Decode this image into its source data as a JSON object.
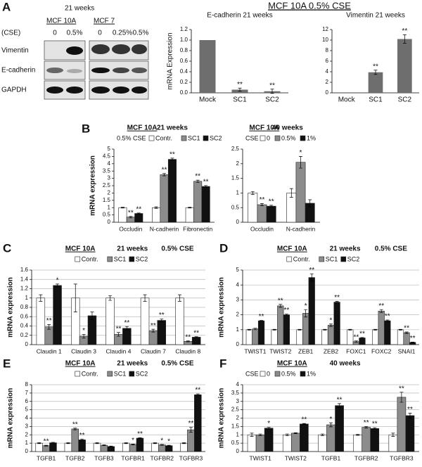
{
  "blot": {
    "panel": "A",
    "weeks": "21 weeks",
    "treatment": "(CSE)",
    "lines": [
      {
        "name": "MCF 10A",
        "lanes": [
          "0",
          "0.5%"
        ]
      },
      {
        "name": "MCF 7",
        "lanes": [
          "0",
          "0.25%",
          "0.5%"
        ]
      }
    ],
    "rows": [
      "Vimentin",
      "E-cadherin",
      "GAPDH"
    ]
  },
  "header": "MCF 10A    0.5% CSE",
  "chart_data": [
    {
      "type": "bar",
      "title": "E-cadherin  21 weeks",
      "ylabel": "mRNA Expression",
      "categories": [
        "Mock",
        "SC1",
        "SC2"
      ],
      "values": [
        1.0,
        0.06,
        0.03
      ],
      "errors": [
        null,
        0.03,
        0.04
      ],
      "labels": [
        null,
        "**",
        "**"
      ],
      "color": "#6e6e6e",
      "ylim": [
        0,
        1.2
      ],
      "yticks": [
        {
          "value": 0,
          "label": "0.0"
        },
        0.2,
        0.4,
        0.6,
        0.8,
        {
          "value": 1,
          "label": "1.0"
        },
        1.2
      ],
      "grid": false
    },
    {
      "type": "bar",
      "title": "Vimentin  21 weeks",
      "categories": [
        "Mock",
        "SC1",
        "SC2"
      ],
      "values": [
        0,
        3.9,
        10.2
      ],
      "errors": [
        null,
        0.4,
        0.8
      ],
      "labels": [
        null,
        "**",
        "**"
      ],
      "color": "#6e6e6e",
      "ylim": [
        0,
        12
      ],
      "yticks": [
        0,
        2,
        4,
        6,
        8,
        10,
        12
      ],
      "grid": false
    },
    {
      "type": "bar",
      "panel": "B",
      "title": "MCF 10A",
      "subtitle": "21 weeks",
      "legend_title": "0.5% CSE",
      "ylabel": "mRNA expression",
      "categories": [
        "Occludin",
        "N-cadherin",
        "Fibronectin"
      ],
      "series": [
        {
          "name": "Contr.",
          "color": "#ffffff",
          "values": [
            1,
            1,
            1
          ],
          "errors": [
            0.03,
            0.05,
            0.03
          ],
          "labels": [
            null,
            null,
            null
          ]
        },
        {
          "name": "SC1",
          "color": "#8c8c8c",
          "values": [
            0.35,
            3.25,
            2.8
          ],
          "errors": [
            0.05,
            0.08,
            0.08
          ],
          "labels": [
            "**",
            "**",
            "**"
          ]
        },
        {
          "name": "SC2",
          "color": "#111111",
          "values": [
            0.6,
            4.3,
            2.45
          ],
          "errors": [
            0.03,
            0.08,
            0.06
          ],
          "labels": [
            "**",
            "**",
            "**"
          ]
        }
      ],
      "ylim": [
        0,
        5
      ],
      "yticks": [
        0,
        0.5,
        1,
        1.5,
        2,
        2.5,
        3,
        3.5,
        4,
        4.5,
        5
      ],
      "grid": false
    },
    {
      "type": "bar",
      "title": "MCF 10A",
      "subtitle": "40 weeks",
      "legend_title": "CSE",
      "categories": [
        "Occludin",
        "N-cadherin"
      ],
      "series": [
        {
          "name": "0",
          "color": "#ffffff",
          "values": [
            1,
            1
          ],
          "errors": [
            0.05,
            0.15
          ],
          "labels": [
            null,
            null
          ]
        },
        {
          "name": "0.5%",
          "color": "#8c8c8c",
          "values": [
            0.6,
            2.05
          ],
          "errors": [
            0.04,
            0.2
          ],
          "labels": [
            "**",
            "*"
          ]
        },
        {
          "name": "1%",
          "color": "#111111",
          "values": [
            0.55,
            0.65
          ],
          "errors": [
            0.03,
            0.12
          ],
          "labels": [
            "**",
            null
          ]
        }
      ],
      "ylim": [
        0,
        2.5
      ],
      "yticks": [
        0,
        0.5,
        1,
        1.5,
        2,
        2.5
      ],
      "grid": false
    },
    {
      "type": "bar",
      "panel": "C",
      "title": "MCF 10A",
      "subtitle": "21 weeks",
      "condition": "0.5%  CSE",
      "ylabel": "mRNA expression",
      "categories": [
        "Claudin 1",
        "Claudin 3",
        "Claudin 4",
        "Claudin 7",
        "Claudin 8"
      ],
      "series": [
        {
          "name": "Contr.",
          "color": "#ffffff",
          "values": [
            1,
            1,
            1,
            1,
            1
          ],
          "errors": [
            0.07,
            0.3,
            0.05,
            0.07,
            0.07
          ],
          "labels": [
            null,
            null,
            null,
            null,
            null
          ]
        },
        {
          "name": "SC1",
          "color": "#8c8c8c",
          "values": [
            0.38,
            0.18,
            0.22,
            0.3,
            0.07
          ],
          "errors": [
            0.05,
            0.04,
            0.04,
            0.03,
            0.01
          ],
          "labels": [
            "**",
            "*",
            "**",
            "**",
            "**"
          ]
        },
        {
          "name": "SC2",
          "color": "#111111",
          "values": [
            1.27,
            0.62,
            0.35,
            0.52,
            0.16
          ],
          "errors": [
            0.03,
            0.08,
            0.04,
            0.03,
            0.01
          ],
          "labels": [
            "*",
            null,
            "**",
            "**",
            "**"
          ]
        }
      ],
      "ylim": [
        0,
        1.6
      ],
      "yticks": [
        0,
        0.2,
        0.4,
        0.6,
        0.8,
        1,
        1.2,
        1.4,
        1.6
      ],
      "grid": true
    },
    {
      "type": "bar",
      "panel": "D",
      "title": "MCF 10A",
      "subtitle": "21 weeks",
      "condition": "0.5%  CSE",
      "ylabel": "mRNA expression",
      "categories": [
        "TWIST1",
        "TWIST2",
        "ZEB1",
        "ZEB2",
        "FOXC1",
        "FOXC2",
        "SNAI1"
      ],
      "series": [
        {
          "name": "Contr.",
          "color": "#ffffff",
          "values": [
            1,
            1,
            1,
            1,
            1,
            1,
            1
          ],
          "errors": [
            0.03,
            0.03,
            0.03,
            0.03,
            0.03,
            0.03,
            0.03
          ],
          "labels": [
            null,
            null,
            null,
            null,
            null,
            null,
            null
          ]
        },
        {
          "name": "SC1",
          "color": "#8c8c8c",
          "values": [
            1.05,
            2.6,
            2.1,
            1.3,
            0.2,
            2.25,
            0.8
          ],
          "errors": [
            0.05,
            0.1,
            0.25,
            0.08,
            0.05,
            0.1,
            0.05
          ],
          "labels": [
            null,
            "**",
            "*",
            "*",
            "**",
            "**",
            "**"
          ]
        },
        {
          "name": "SC2",
          "color": "#111111",
          "values": [
            1.6,
            2.0,
            4.5,
            2.85,
            0.45,
            1.6,
            0.15
          ],
          "errors": [
            0.03,
            0.05,
            0.25,
            0.05,
            0.03,
            0.05,
            0.02
          ],
          "labels": [
            "**",
            "**",
            "**",
            "**",
            "**",
            "**",
            "**"
          ]
        }
      ],
      "ylim": [
        0,
        5
      ],
      "yticks": [
        0,
        1,
        2,
        3,
        4,
        5
      ],
      "grid": true
    },
    {
      "type": "bar",
      "panel": "E",
      "title": "MCF 10A",
      "subtitle": "21 weeks",
      "condition": "0.5%  CSE",
      "ylabel": "mRNA expression",
      "categories": [
        "TGFB1",
        "TGFB2",
        "TGFB3",
        "TGFBR1",
        "TGFBR2",
        "TGFBR3"
      ],
      "series": [
        {
          "name": "Contr.",
          "color": "#ffffff",
          "values": [
            1,
            1,
            1,
            1,
            1,
            1
          ],
          "errors": [
            0.05,
            0.05,
            0.05,
            0.05,
            0.05,
            0.05
          ],
          "labels": [
            null,
            null,
            null,
            null,
            null,
            null
          ]
        },
        {
          "name": "SC1",
          "color": "#8c8c8c",
          "values": [
            0.7,
            2.7,
            0.75,
            0.85,
            0.8,
            2.6
          ],
          "errors": [
            0.05,
            0.1,
            0.05,
            0.05,
            0.05,
            0.3
          ],
          "labels": [
            "**",
            "**",
            null,
            "*",
            "*",
            "**"
          ]
        },
        {
          "name": "SC2",
          "color": "#111111",
          "values": [
            1.05,
            1.4,
            0.6,
            1.6,
            0.7,
            6.8
          ],
          "errors": [
            0.05,
            0.1,
            0.05,
            0.05,
            0.05,
            0.1
          ],
          "labels": [
            null,
            "**",
            null,
            "**",
            "*",
            "**"
          ]
        }
      ],
      "ylim": [
        0,
        8
      ],
      "yticks": [
        0,
        1,
        2,
        3,
        4,
        5,
        6,
        7,
        8
      ],
      "grid": true
    },
    {
      "type": "bar",
      "panel": "F",
      "title": "MCF 10A",
      "subtitle": "40 weeks",
      "legend_title": "CSE",
      "ylabel": "mRNA expression",
      "categories": [
        "TWIST1",
        "TWIST2",
        "TGFB1",
        "TGFBR2",
        "TGFBR3"
      ],
      "series": [
        {
          "name": "0",
          "color": "#ffffff",
          "values": [
            1,
            1,
            1,
            1,
            1
          ],
          "errors": [
            0.1,
            0.05,
            0.05,
            0.03,
            0.1
          ],
          "labels": [
            null,
            null,
            null,
            null,
            null
          ]
        },
        {
          "name": "0.5%",
          "color": "#8c8c8c",
          "values": [
            1.0,
            1.1,
            1.6,
            1.45,
            3.25
          ],
          "errors": [
            0.05,
            0.03,
            0.12,
            0.05,
            0.3
          ],
          "labels": [
            null,
            null,
            "*",
            "**",
            "**"
          ]
        },
        {
          "name": "1%",
          "color": "#111111",
          "values": [
            1.4,
            1.65,
            2.75,
            1.38,
            2.15
          ],
          "errors": [
            0.05,
            0.03,
            0.12,
            0.05,
            0.15
          ],
          "labels": [
            "*",
            "**",
            "**",
            "**",
            "**"
          ]
        }
      ],
      "ylim": [
        0,
        4
      ],
      "yticks": [
        0,
        0.5,
        1,
        1.5,
        2,
        2.5,
        3,
        3.5,
        4
      ],
      "grid": true
    }
  ]
}
